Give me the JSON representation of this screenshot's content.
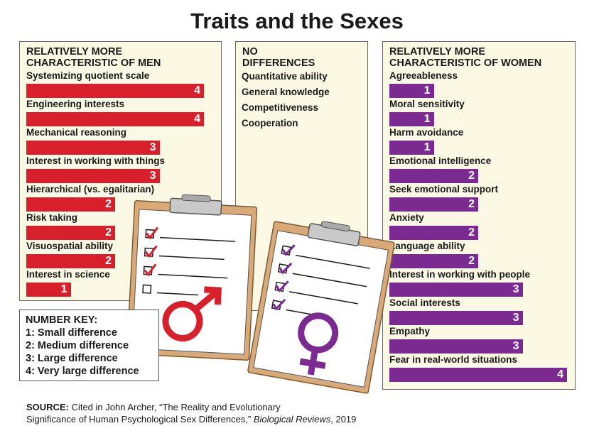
{
  "title": "Traits and the Sexes",
  "colors": {
    "men": "#d7202c",
    "women": "#7b2a92",
    "panel": "#fbf8e4",
    "clipboard": "#d9a977"
  },
  "chart_data": [
    {
      "type": "bar",
      "orientation": "horizontal",
      "title": "RELATIVELY MORE CHARACTERISTIC OF MEN",
      "categories": [
        "Systemizing quotient scale",
        "Engineering interests",
        "Mechanical reasoning",
        "Interest in working with things",
        "Hierarchical (vs. egalitarian)",
        "Risk taking",
        "Visuospatial ability",
        "Interest in science"
      ],
      "values": [
        4,
        4,
        3,
        3,
        2,
        2,
        2,
        1
      ],
      "xlim": [
        0,
        4
      ]
    },
    {
      "type": "table",
      "title": "NO DIFFERENCES",
      "items": [
        "Quantitative ability",
        "General knowledge",
        "Competitiveness",
        "Cooperation"
      ]
    },
    {
      "type": "bar",
      "orientation": "horizontal",
      "title": "RELATIVELY MORE CHARACTERISTIC OF WOMEN",
      "categories": [
        "Agreeableness",
        "Moral sensitivity",
        "Harm avoidance",
        "Emotional intelligence",
        "Seek emotional support",
        "Anxiety",
        "Language ability",
        "Interest in working with people",
        "Social interests",
        "Empathy",
        "Fear in real-world situations"
      ],
      "values": [
        1,
        1,
        1,
        2,
        2,
        2,
        2,
        3,
        3,
        3,
        4
      ],
      "xlim": [
        0,
        4
      ]
    }
  ],
  "key": {
    "heading": "NUMBER KEY:",
    "items": [
      "1: Small difference",
      "2: Medium difference",
      "3: Large difference",
      "4: Very large difference"
    ]
  },
  "source": {
    "label": "SOURCE:",
    "text1": " Cited in John Archer, “The Reality and Evolutionary",
    "text2": "Significance of Human Psychological Sex Differences,” ",
    "journal": "Biological Reviews",
    "text3": ", 2019"
  },
  "icons": [
    "clipboard-icon",
    "checkbox-icon",
    "male-symbol-icon",
    "female-symbol-icon"
  ]
}
